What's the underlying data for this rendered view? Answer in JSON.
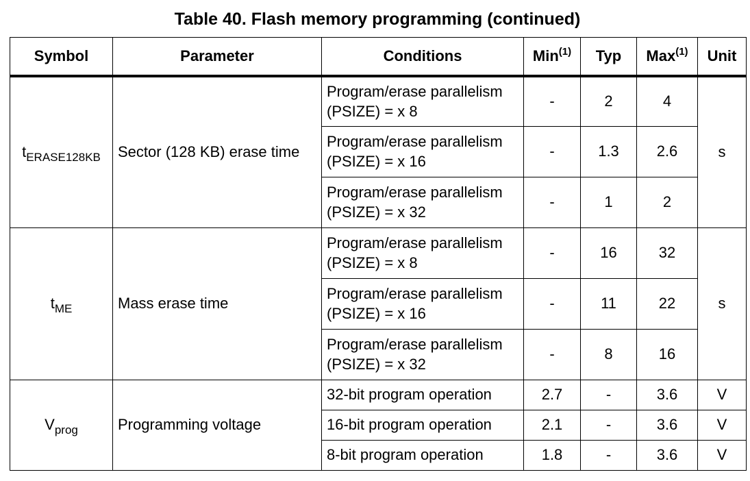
{
  "title": "Table 40. Flash memory programming (continued)",
  "headers": {
    "symbol": "Symbol",
    "parameter": "Parameter",
    "conditions": "Conditions",
    "min": "Min",
    "min_note": "(1)",
    "typ": "Typ",
    "max": "Max",
    "max_note": "(1)",
    "unit": "Unit"
  },
  "groups": [
    {
      "symbol_main": "t",
      "symbol_sub": "ERASE128KB",
      "parameter": "Sector (128 KB) erase time",
      "unit": "s",
      "rows": [
        {
          "cond1": "Program/erase parallelism",
          "cond2": "(PSIZE) = x 8",
          "min": "-",
          "typ": "2",
          "max": "4"
        },
        {
          "cond1": "Program/erase parallelism",
          "cond2": "(PSIZE) = x 16",
          "min": "-",
          "typ": "1.3",
          "max": "2.6"
        },
        {
          "cond1": "Program/erase parallelism",
          "cond2": "(PSIZE) = x 32",
          "min": "-",
          "typ": "1",
          "max": "2"
        }
      ]
    },
    {
      "symbol_main": "t",
      "symbol_sub": "ME",
      "parameter": "Mass erase time",
      "unit": "s",
      "rows": [
        {
          "cond1": "Program/erase parallelism",
          "cond2": "(PSIZE) = x 8",
          "min": "-",
          "typ": "16",
          "max": "32"
        },
        {
          "cond1": "Program/erase parallelism",
          "cond2": "(PSIZE) = x 16",
          "min": "-",
          "typ": "11",
          "max": "22"
        },
        {
          "cond1": "Program/erase parallelism",
          "cond2": "(PSIZE) = x 32",
          "min": "-",
          "typ": "8",
          "max": "16"
        }
      ]
    },
    {
      "symbol_main": "V",
      "symbol_sub": "prog",
      "parameter": "Programming voltage",
      "rows": [
        {
          "cond": "32-bit program operation",
          "min": "2.7",
          "typ": "-",
          "max": "3.6",
          "unit": "V"
        },
        {
          "cond": "16-bit program operation",
          "min": "2.1",
          "typ": "-",
          "max": "3.6",
          "unit": "V"
        },
        {
          "cond": "8-bit program operation",
          "min": "1.8",
          "typ": "-",
          "max": "3.6",
          "unit": "V"
        }
      ]
    }
  ]
}
